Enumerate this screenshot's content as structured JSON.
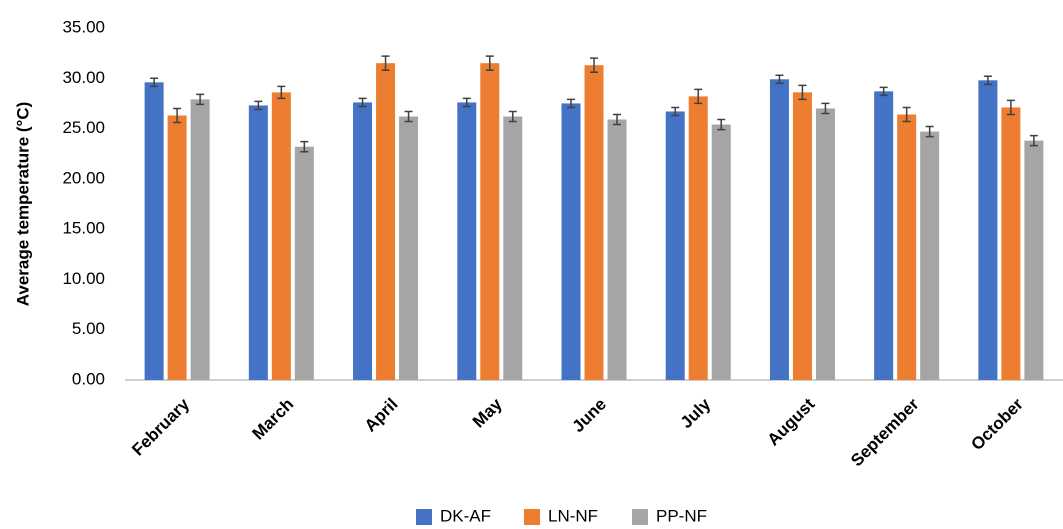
{
  "chart_data": {
    "type": "bar",
    "y_label": "Average temperature (°C)",
    "categories": [
      "February",
      "March",
      "April",
      "May",
      "June",
      "July",
      "August",
      "September",
      "October"
    ],
    "series": [
      {
        "name": "DK-AF",
        "color": "#4472c4",
        "values": [
          29.6,
          27.3,
          27.6,
          27.6,
          27.5,
          26.7,
          29.9,
          28.7,
          29.8
        ],
        "errors": [
          0.4,
          0.4,
          0.4,
          0.4,
          0.4,
          0.4,
          0.4,
          0.4,
          0.4
        ]
      },
      {
        "name": "LN-NF",
        "color": "#ed7d31",
        "values": [
          26.3,
          28.6,
          31.5,
          31.5,
          31.3,
          28.2,
          28.6,
          26.4,
          27.1
        ],
        "errors": [
          0.7,
          0.6,
          0.7,
          0.7,
          0.7,
          0.7,
          0.7,
          0.7,
          0.7
        ]
      },
      {
        "name": "PP-NF",
        "color": "#a5a5a5",
        "values": [
          27.9,
          23.2,
          26.2,
          26.2,
          25.9,
          25.4,
          27.0,
          24.7,
          23.8
        ],
        "errors": [
          0.5,
          0.5,
          0.5,
          0.5,
          0.5,
          0.5,
          0.5,
          0.5,
          0.5
        ]
      }
    ],
    "ylim": [
      0,
      35
    ],
    "yticks": [
      {
        "value": 0,
        "label": "0.00"
      },
      {
        "value": 5,
        "label": "5.00"
      },
      {
        "value": 10,
        "label": "10.00"
      },
      {
        "value": 15,
        "label": "15.00"
      },
      {
        "value": 20,
        "label": "20.00"
      },
      {
        "value": 25,
        "label": "25.00"
      },
      {
        "value": 30,
        "label": "30.00"
      },
      {
        "value": 35,
        "label": "35.00"
      }
    ],
    "grid": false,
    "legend": "bottom"
  }
}
